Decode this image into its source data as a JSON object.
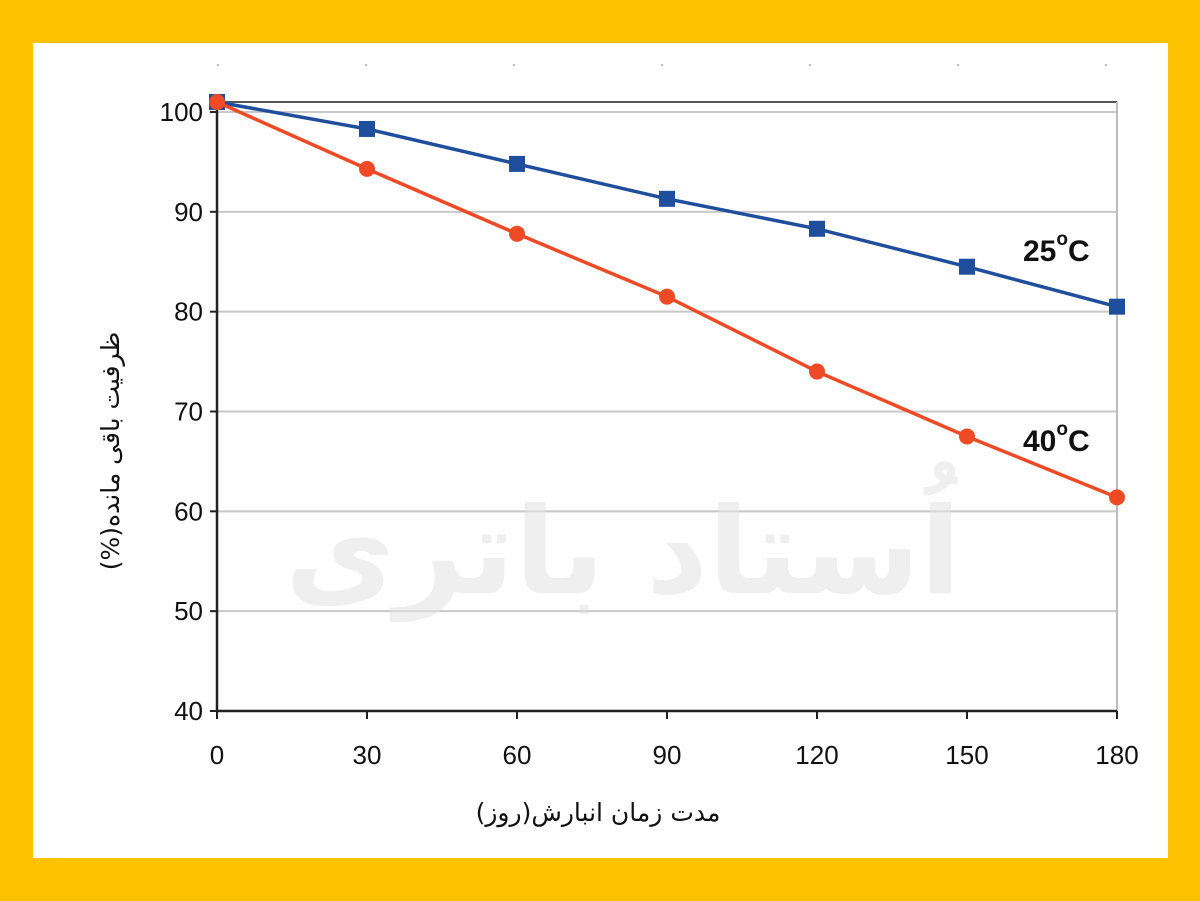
{
  "chart_data": {
    "type": "line",
    "x": [
      0,
      30,
      60,
      90,
      120,
      150,
      180
    ],
    "xlim": [
      0,
      180
    ],
    "ylim": [
      40,
      101
    ],
    "yticks": [
      40,
      50,
      60,
      70,
      80,
      90,
      100
    ],
    "xticks": [
      0,
      30,
      60,
      90,
      120,
      150,
      180
    ],
    "xlabel": "مدت زمان انبارش(روز)",
    "ylabel": "ظرفیت باقی مانده(%)",
    "grid": true,
    "series": [
      {
        "name": "25°C",
        "label_main": "25",
        "label_sup": "o",
        "label_unit": "C",
        "color": "#1F4E9C",
        "marker": "square",
        "values": [
          101,
          98.3,
          94.8,
          91.3,
          88.3,
          84.5,
          80.5
        ]
      },
      {
        "name": "40°C",
        "label_main": "40",
        "label_sup": "o",
        "label_unit": "C",
        "color": "#EE4A26",
        "marker": "circle",
        "values": [
          101,
          94.3,
          87.8,
          81.5,
          74,
          67.5,
          61.4
        ]
      }
    ]
  },
  "watermark": {
    "text": "اُستاد باتری"
  }
}
